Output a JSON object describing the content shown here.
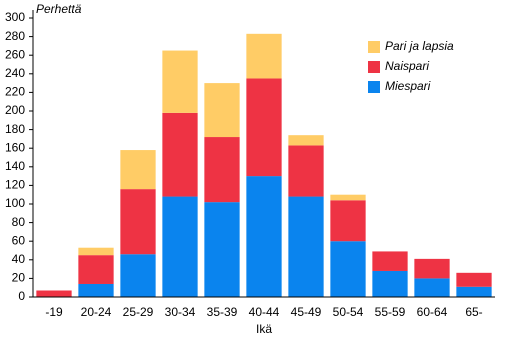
{
  "chart_data": {
    "type": "stacked_bar",
    "y_label": "Perhettä",
    "x_label": "Ikä",
    "categories": [
      "-19",
      "20-24",
      "25-29",
      "30-34",
      "35-39",
      "40-44",
      "45-49",
      "50-54",
      "55-59",
      "60-64",
      "65-"
    ],
    "series": [
      {
        "name": "Miespari",
        "color": "#0a84ee",
        "values": [
          0,
          14,
          46,
          108,
          102,
          130,
          108,
          60,
          28,
          20,
          11
        ]
      },
      {
        "name": "Naispari",
        "color": "#ee3344",
        "values": [
          7,
          31,
          70,
          90,
          70,
          105,
          55,
          44,
          21,
          21,
          15
        ]
      },
      {
        "name": "Pari ja lapsia",
        "color": "#ffcc66",
        "values": [
          0,
          8,
          42,
          67,
          58,
          48,
          11,
          6,
          0,
          0,
          0
        ]
      }
    ],
    "ylim": [
      0,
      300
    ],
    "yticks": [
      0,
      20,
      40,
      60,
      80,
      100,
      120,
      140,
      160,
      180,
      200,
      220,
      240,
      260,
      280,
      300
    ],
    "legend": "top-right"
  }
}
